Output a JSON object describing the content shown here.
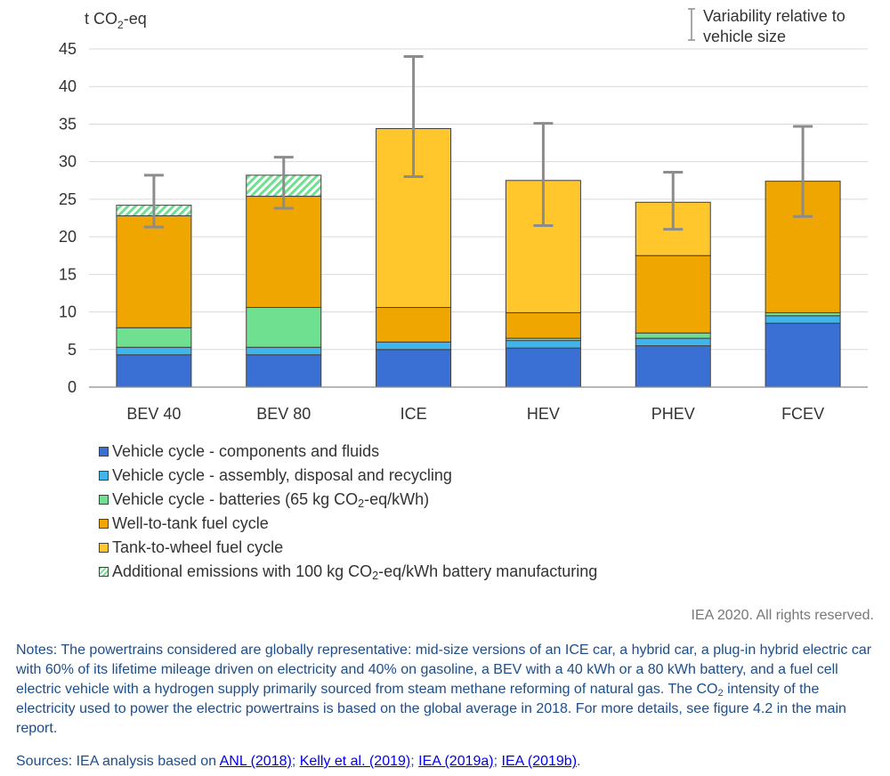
{
  "chart_data": {
    "type": "bar",
    "stacked": true,
    "ylabel": "t CO2-eq",
    "ylim": [
      0,
      45
    ],
    "yticks": [
      0,
      5,
      10,
      15,
      20,
      25,
      30,
      35,
      40,
      45
    ],
    "grid": true,
    "legend_position": "bottom",
    "categories": [
      "BEV 40",
      "BEV 80",
      "ICE",
      "HEV",
      "PHEV",
      "FCEV"
    ],
    "series": [
      {
        "name": "Vehicle cycle - components and fluids",
        "color": "#3a70d4",
        "values": [
          4.3,
          4.3,
          5.0,
          5.2,
          5.5,
          8.5
        ]
      },
      {
        "name": "Vehicle cycle - assembly, disposal and recycling",
        "color": "#3fb5ec",
        "values": [
          1.0,
          1.0,
          1.0,
          1.0,
          1.0,
          1.0
        ]
      },
      {
        "name": "Vehicle cycle - batteries (65 kg CO2-eq/kWh)",
        "color": "#6ee08f",
        "values": [
          2.6,
          5.3,
          0,
          0.3,
          0.7,
          0.4
        ]
      },
      {
        "name": "Well-to-tank fuel cycle",
        "color": "#f0a600",
        "values": [
          14.9,
          14.8,
          4.6,
          3.4,
          10.3,
          17.5
        ]
      },
      {
        "name": "Tank-to-wheel fuel cycle",
        "color": "#ffc72c",
        "values": [
          0,
          0,
          23.8,
          17.6,
          7.1,
          0
        ]
      },
      {
        "name": "Additional emissions with 100 kg CO2-eq/kWh battery manufacturing",
        "color": "#6ee08f",
        "hatched": true,
        "values": [
          1.4,
          2.8,
          0,
          0,
          0,
          0
        ]
      }
    ],
    "error_bars": {
      "name": "Variability relative to vehicle size",
      "low": [
        21.3,
        23.8,
        28.0,
        21.5,
        21.0,
        22.7
      ],
      "high": [
        28.2,
        30.6,
        44.0,
        35.1,
        28.6,
        34.7
      ]
    }
  },
  "legend_labels": [
    {
      "pre": "Vehicle cycle - components and fluids"
    },
    {
      "pre": "Vehicle cycle - assembly, disposal and recycling"
    },
    {
      "pre": "Vehicle cycle - batteries (65 kg CO",
      "sub": "2",
      "post": "-eq/kWh)"
    },
    {
      "pre": "Well-to-tank fuel cycle"
    },
    {
      "pre": "Tank-to-wheel fuel cycle"
    },
    {
      "pre": "Additional emissions with 100 kg CO",
      "sub": "2",
      "post": "-eq/kWh battery manufacturing"
    }
  ],
  "yunit": {
    "pre": "t CO",
    "sub": "2",
    "post": "-eq"
  },
  "errorbar_legend": [
    "Variability relative to",
    "vehicle size"
  ],
  "rights": "IEA 2020. All rights reserved.",
  "notes": {
    "part1": "Notes: The powertrains considered are globally representative: mid-size versions of an ICE car, a hybrid car, a plug-in hybrid electric car with 60% of its lifetime mileage driven on electricity and 40% on gasoline, a BEV with a 40 kWh or a 80 kWh battery, and a fuel cell electric vehicle with a hydrogen supply primarily sourced from steam methane reforming of natural gas. The CO",
    "sub": "2",
    "part2": " intensity of the electricity used to power the electric powertrains is based on the global average in 2018. For more details, see figure 4.2 in the main report."
  },
  "sources": {
    "prefix": "Sources: IEA analysis based on ",
    "links": [
      "ANL (2018)",
      "Kelly et al. (2019)",
      "IEA (2019a)",
      "IEA (2019b)"
    ],
    "separator": "; ",
    "suffix": "."
  }
}
